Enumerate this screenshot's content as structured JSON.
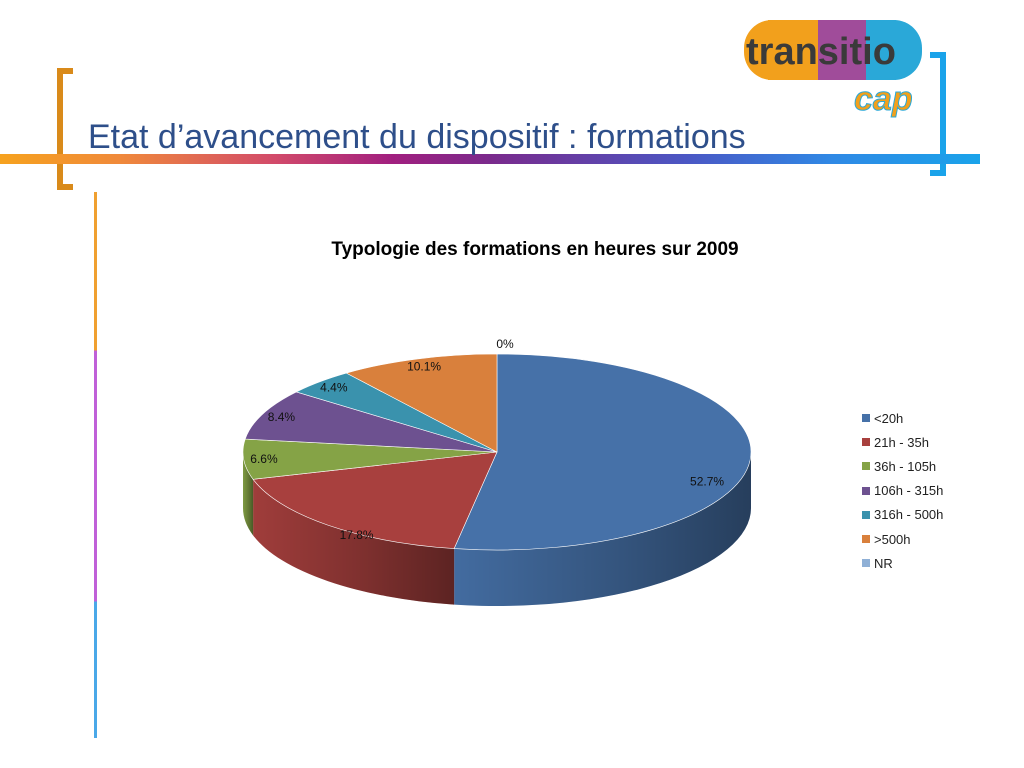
{
  "slide": {
    "title": "Etat d’avancement du dispositif : formations"
  },
  "logo": {
    "text_main": "transitio",
    "text_sub": "cap"
  },
  "chart_data": {
    "type": "pie",
    "title": "Typologie des formations en heures sur 2009",
    "categories": [
      "<20h",
      "21h - 35h",
      "36h - 105h",
      "106h - 315h",
      "316h - 500h",
      ">500h",
      "NR"
    ],
    "values": [
      52.7,
      17.8,
      6.6,
      8.4,
      4.4,
      10.1,
      0
    ],
    "labels": [
      "52.7%",
      "17.8%",
      "6.6%",
      "8.4%",
      "4.4%",
      "10.1%",
      "0%"
    ],
    "colors": [
      "#4671a8",
      "#a8403e",
      "#85a346",
      "#6d5190",
      "#3a92ad",
      "#d9803c",
      "#8fb0d6"
    ],
    "legend_position": "right",
    "style": "3d"
  }
}
